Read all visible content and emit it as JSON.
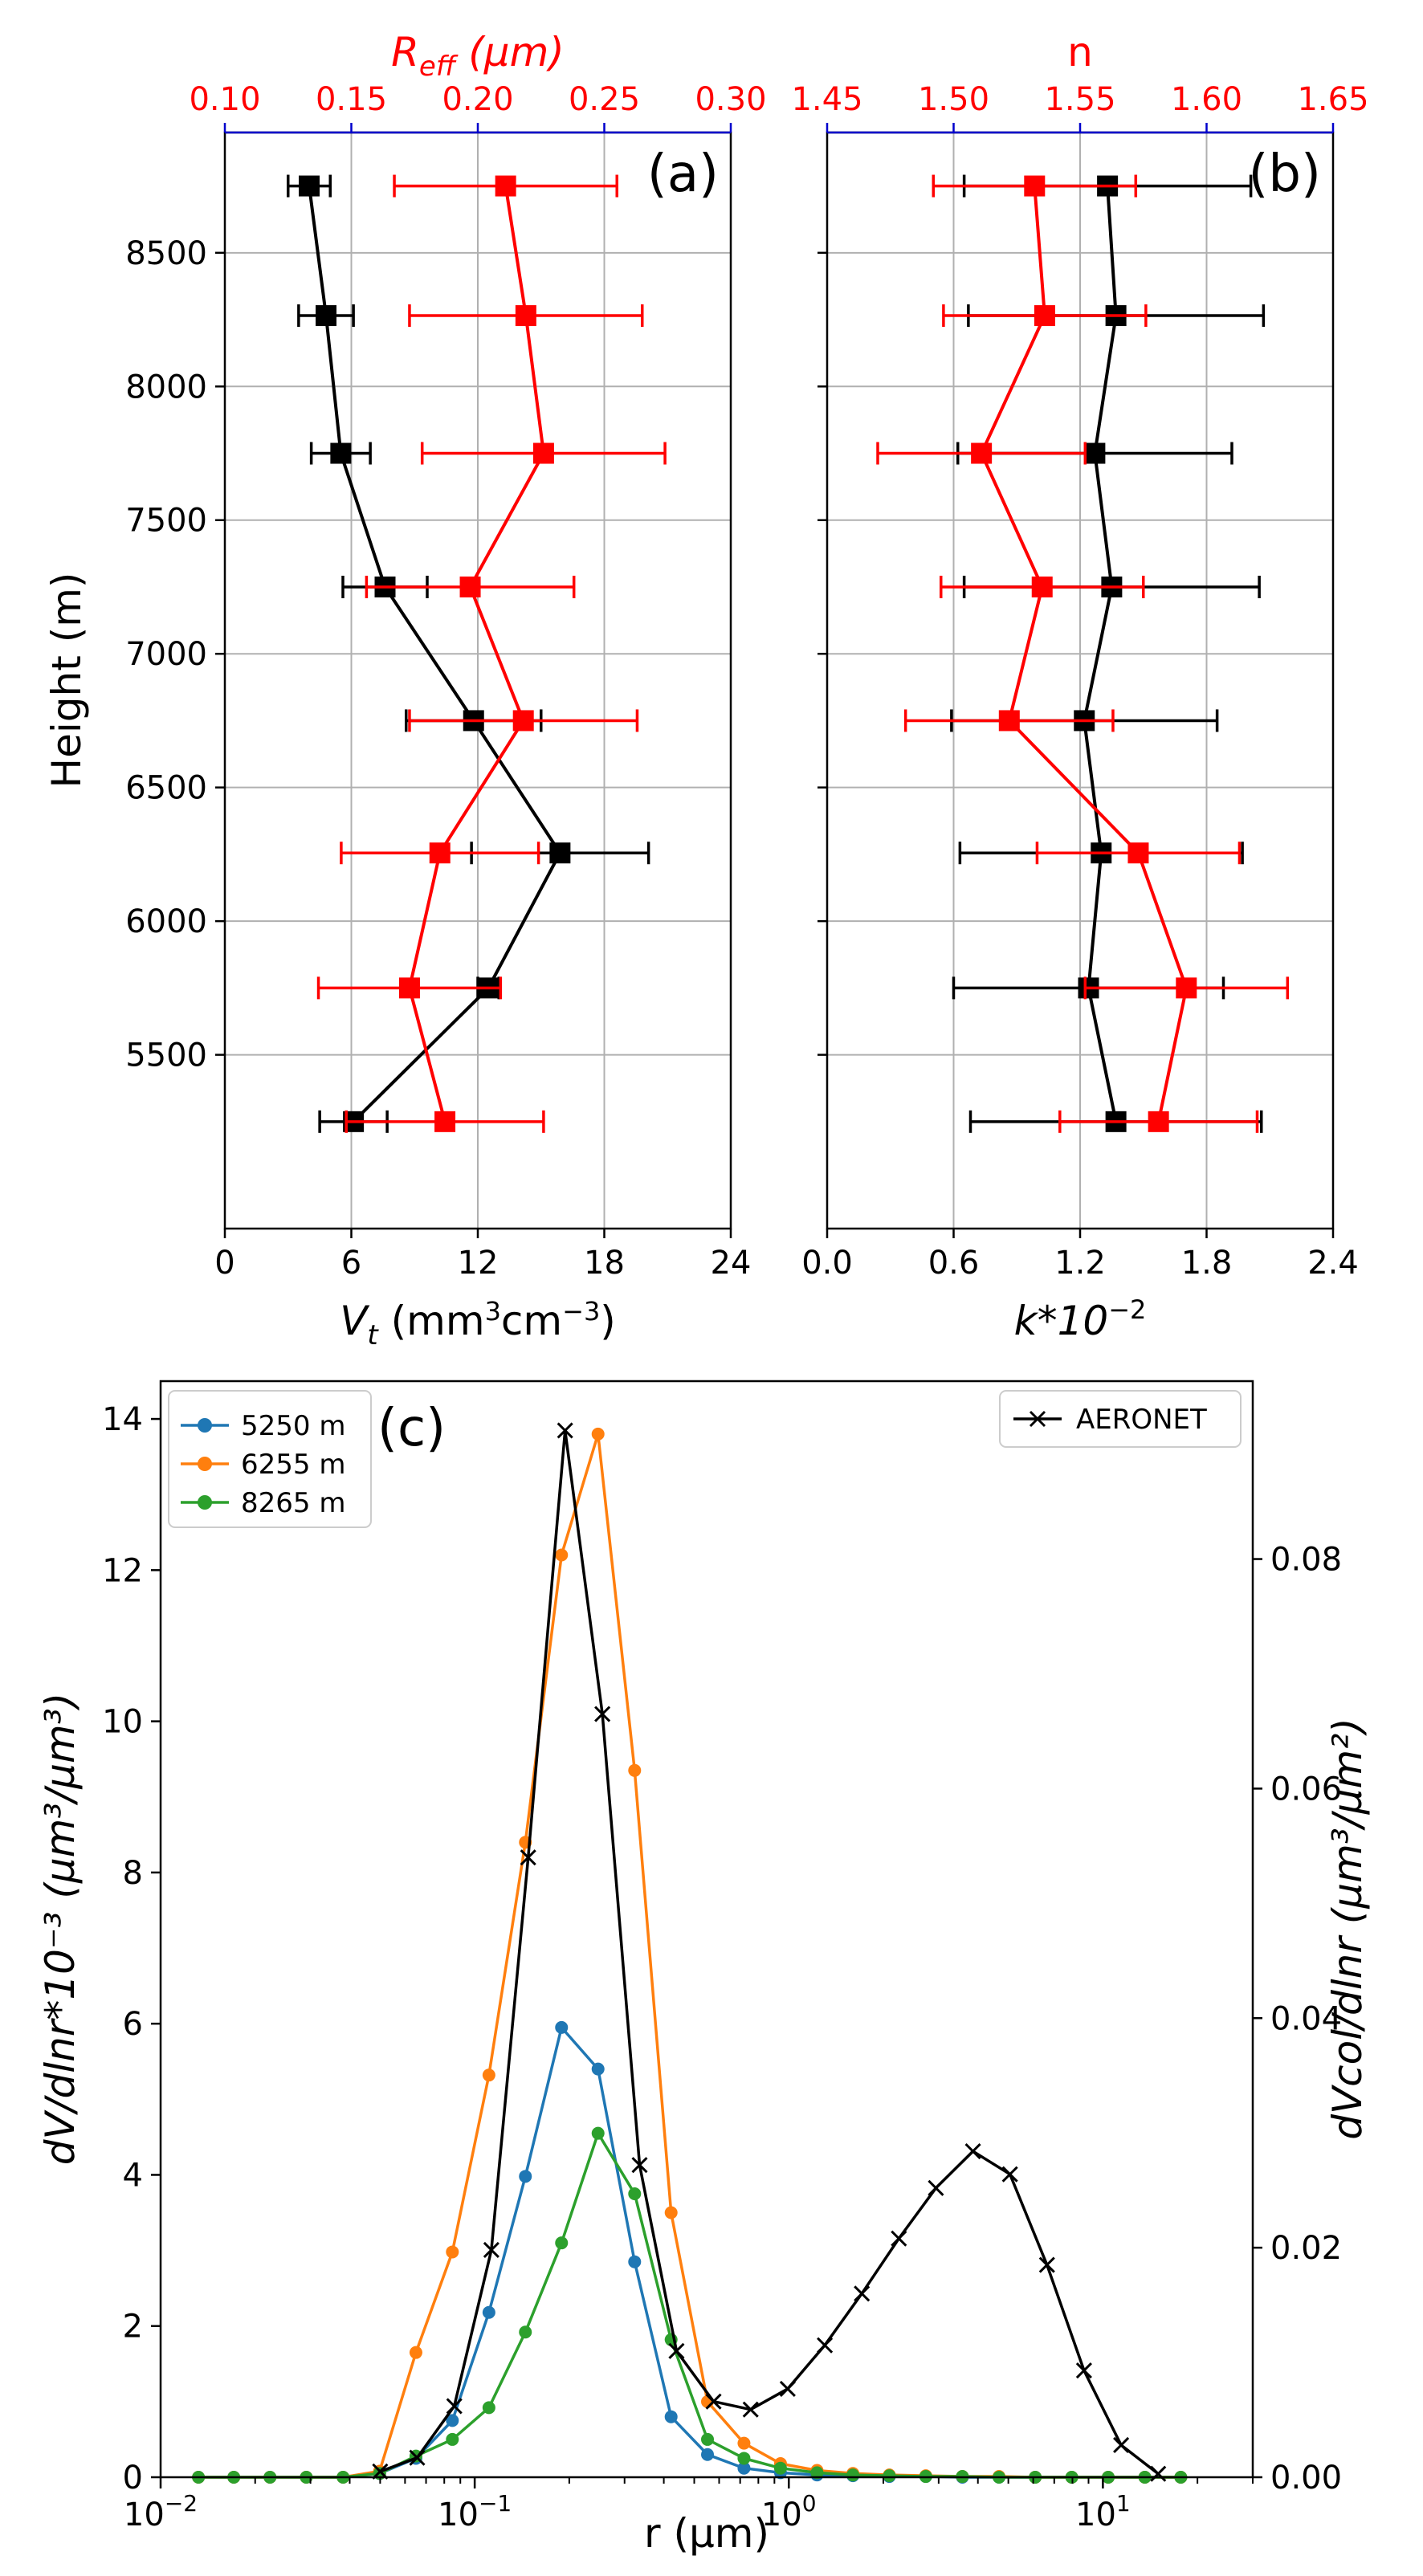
{
  "chart_data": [
    {
      "panel": "a",
      "type": "line",
      "panel_label": "(a)",
      "ylabel": "Height (m)",
      "ylim": [
        4850,
        8950
      ],
      "yticks": [
        5500,
        6000,
        6500,
        7000,
        7500,
        8000,
        8500
      ],
      "ytick_labels": [
        "5500",
        "6000",
        "6500",
        "7000",
        "7500",
        "8000",
        "8500"
      ],
      "bottom_axis": {
        "label_base": "V",
        "label_sub": "t",
        "label_unit_open": " (mm",
        "label_unit_sup": "3",
        "label_unit_mid": "cm",
        "label_unit_sup2": "−3",
        "label_unit_close": ")",
        "lim": [
          0,
          24
        ],
        "ticks": [
          0,
          6,
          12,
          18,
          24
        ],
        "tick_labels": [
          "0",
          "6",
          "12",
          "18",
          "24"
        ],
        "color": "#000000"
      },
      "top_axis": {
        "label_base": "R",
        "label_sub": "eff",
        "label_unit": " (μm)",
        "lim": [
          0.1,
          0.3
        ],
        "ticks": [
          0.1,
          0.15,
          0.2,
          0.25,
          0.3
        ],
        "tick_labels": [
          "0.10",
          "0.15",
          "0.20",
          "0.25",
          "0.30"
        ],
        "color": "#ff0000"
      },
      "series": [
        {
          "name": "Vt",
          "axis": "bottom",
          "color": "#000000",
          "heights": [
            5250,
            5750,
            6255,
            6750,
            7250,
            7750,
            8265,
            8750
          ],
          "values": [
            6.1,
            12.5,
            15.9,
            11.8,
            7.6,
            5.5,
            4.8,
            4.0
          ],
          "xerr": [
            1.6,
            0.5,
            4.2,
            3.2,
            2.0,
            1.4,
            1.3,
            1.0
          ]
        },
        {
          "name": "Reff",
          "axis": "top",
          "color": "#ff0000",
          "heights": [
            5250,
            5750,
            6255,
            6750,
            7250,
            7750,
            8265,
            8750
          ],
          "values": [
            0.187,
            0.173,
            0.185,
            0.218,
            0.197,
            0.226,
            0.219,
            0.211
          ],
          "xerr": [
            0.039,
            0.036,
            0.039,
            0.045,
            0.041,
            0.048,
            0.046,
            0.044
          ]
        }
      ]
    },
    {
      "panel": "b",
      "type": "line",
      "panel_label": "(b)",
      "ylim": [
        4850,
        8950
      ],
      "yticks": [
        5500,
        6000,
        6500,
        7000,
        7500,
        8000,
        8500
      ],
      "bottom_axis": {
        "label_base": "k*10",
        "label_sup": "−2",
        "lim": [
          0,
          2.4
        ],
        "ticks": [
          0,
          0.6,
          1.2,
          1.8,
          2.4
        ],
        "tick_labels": [
          "0.0",
          "0.6",
          "1.2",
          "1.8",
          "2.4"
        ],
        "color": "#000000"
      },
      "top_axis": {
        "label": "n",
        "lim": [
          1.45,
          1.65
        ],
        "ticks": [
          1.45,
          1.5,
          1.55,
          1.6,
          1.65
        ],
        "tick_labels": [
          "1.45",
          "1.50",
          "1.55",
          "1.60",
          "1.65"
        ],
        "color": "#ff0000"
      },
      "series": [
        {
          "name": "k",
          "axis": "bottom",
          "color": "#000000",
          "heights": [
            5250,
            5750,
            6255,
            6750,
            7250,
            7750,
            8265,
            8750
          ],
          "values": [
            1.37,
            1.24,
            1.3,
            1.22,
            1.35,
            1.27,
            1.37,
            1.33
          ],
          "xerr": [
            0.69,
            0.64,
            0.67,
            0.63,
            0.7,
            0.65,
            0.7,
            0.68
          ]
        },
        {
          "name": "n",
          "axis": "top",
          "color": "#ff0000",
          "heights": [
            5250,
            5750,
            6255,
            6750,
            7250,
            7750,
            8265,
            8750
          ],
          "values": [
            1.581,
            1.592,
            1.573,
            1.522,
            1.535,
            1.511,
            1.536,
            1.532
          ],
          "xerr": [
            0.039,
            0.04,
            0.04,
            0.041,
            0.04,
            0.041,
            0.04,
            0.04
          ]
        }
      ]
    },
    {
      "panel": "c",
      "type": "line",
      "panel_label": "(c)",
      "xscale": "log",
      "xlim": [
        0.01,
        30
      ],
      "xticks": [
        0.01,
        0.1,
        1,
        10
      ],
      "xtick_base": "10",
      "xtick_exps": [
        "−2",
        "−1",
        "0",
        "1"
      ],
      "xlabel": "r (μm)",
      "ylabel": "dV/dlnr*10⁻³ (μm³/μm³)",
      "ylim": [
        0,
        14.5
      ],
      "yticks": [
        0,
        2,
        4,
        6,
        8,
        10,
        12,
        14
      ],
      "ytick_labels": [
        "0",
        "2",
        "4",
        "6",
        "8",
        "10",
        "12",
        "14"
      ],
      "y2label": "dVcol/dlnr (μm³/μm²)",
      "y2lim": [
        0,
        0.0955
      ],
      "y2ticks": [
        0,
        0.02,
        0.04,
        0.06,
        0.08
      ],
      "y2tick_labels": [
        "0.00",
        "0.02",
        "0.04",
        "0.06",
        "0.08"
      ],
      "x": [
        0.0132,
        0.0171,
        0.0223,
        0.0291,
        0.0381,
        0.0498,
        0.065,
        0.0849,
        0.111,
        0.145,
        0.189,
        0.247,
        0.323,
        0.422,
        0.551,
        0.72,
        0.941,
        1.23,
        1.6,
        2.09,
        2.73,
        3.57,
        4.67,
        6.09,
        7.96,
        10.4,
        13.6,
        17.7
      ],
      "series": [
        {
          "name": "5250 m",
          "color": "#1f77b4",
          "axis": "left",
          "values": [
            0,
            0,
            0,
            0,
            0,
            0.05,
            0.25,
            0.75,
            2.18,
            3.98,
            5.95,
            5.4,
            2.85,
            0.8,
            0.3,
            0.12,
            0.06,
            0.03,
            0.02,
            0.01,
            0.01,
            0,
            0,
            0,
            0,
            0,
            0,
            0
          ]
        },
        {
          "name": "6255 m",
          "color": "#ff7f0e",
          "axis": "left",
          "values": [
            0,
            0,
            0,
            0,
            0,
            0.08,
            1.65,
            2.98,
            5.32,
            8.4,
            12.2,
            13.8,
            9.35,
            3.5,
            1.0,
            0.45,
            0.18,
            0.09,
            0.05,
            0.03,
            0.02,
            0.01,
            0.01,
            0,
            0,
            0,
            0,
            0
          ]
        },
        {
          "name": "8265 m",
          "color": "#2ca02c",
          "axis": "left",
          "values": [
            0,
            0,
            0,
            0,
            0,
            0.05,
            0.28,
            0.5,
            0.92,
            1.92,
            3.1,
            4.55,
            3.75,
            1.82,
            0.5,
            0.25,
            0.12,
            0.06,
            0.03,
            0.02,
            0.01,
            0.01,
            0,
            0,
            0,
            0,
            0,
            0
          ]
        }
      ],
      "aeronet": {
        "name": "AERONET",
        "color": "#000000",
        "axis": "right",
        "marker": "x",
        "x": [
          0.05,
          0.0656,
          0.0861,
          0.113,
          0.148,
          0.194,
          0.255,
          0.335,
          0.439,
          0.576,
          0.756,
          0.992,
          1.302,
          1.708,
          2.241,
          2.94,
          3.857,
          5.06,
          6.638,
          8.709,
          11.43,
          15.0
        ],
        "values": [
          0.0005,
          0.0017,
          0.0062,
          0.0198,
          0.054,
          0.0912,
          0.0665,
          0.0272,
          0.011,
          0.0066,
          0.0059,
          0.0077,
          0.0115,
          0.016,
          0.0208,
          0.0252,
          0.0284,
          0.0264,
          0.0185,
          0.0093,
          0.0028,
          0.0003
        ]
      },
      "legend_left": [
        "5250 m",
        "6255 m",
        "8265 m"
      ],
      "legend_right": [
        "AERONET"
      ]
    }
  ]
}
